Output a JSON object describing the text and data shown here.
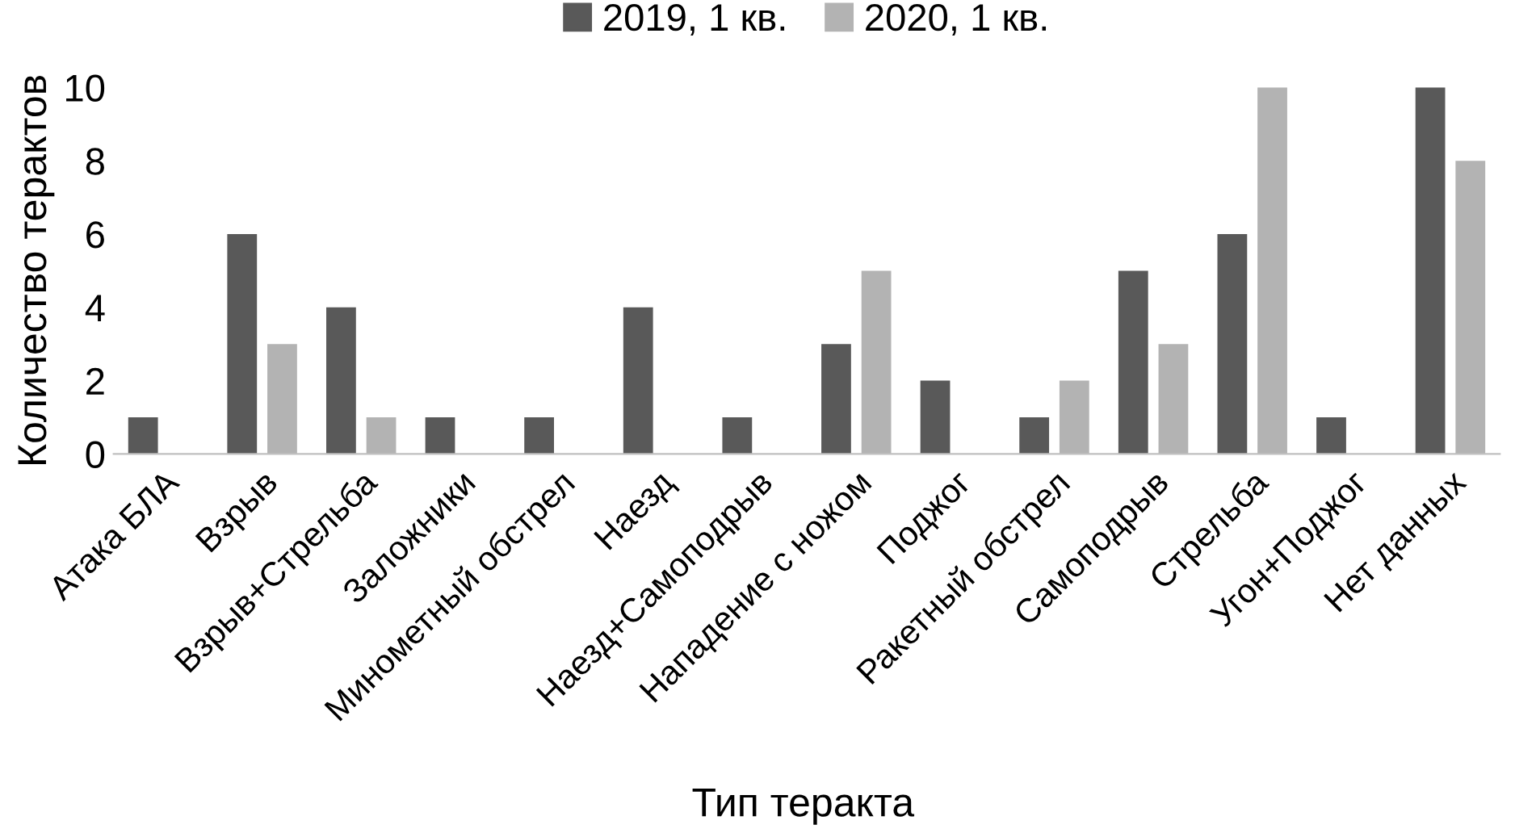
{
  "chart_data": {
    "type": "bar",
    "xlabel": "Тип теракта",
    "ylabel": "Количество терактов",
    "categories": [
      "Атака БЛА",
      "Взрыв",
      "Взрыв+Стрельба",
      "Заложники",
      "Минометный обстрел",
      "Наезд",
      "Наезд+Самоподрыв",
      "Нападение с ножом",
      "Поджог",
      "Ракетный обстрел",
      "Самоподрыв",
      "Стрельба",
      "Угон+Поджог",
      "Нет данных"
    ],
    "series": [
      {
        "name": "2019, 1 кв.",
        "color": "#595959",
        "values": [
          1,
          6,
          4,
          1,
          1,
          4,
          1,
          3,
          2,
          1,
          5,
          6,
          1,
          10
        ]
      },
      {
        "name": "2020, 1 кв.",
        "color": "#b3b3b3",
        "values": [
          0,
          3,
          1,
          0,
          0,
          0,
          0,
          5,
          0,
          2,
          3,
          10,
          0,
          8
        ]
      }
    ],
    "ylim": [
      0,
      10
    ],
    "yticks": [
      0,
      2,
      4,
      6,
      8,
      10
    ],
    "grid": false,
    "legend": "top"
  }
}
